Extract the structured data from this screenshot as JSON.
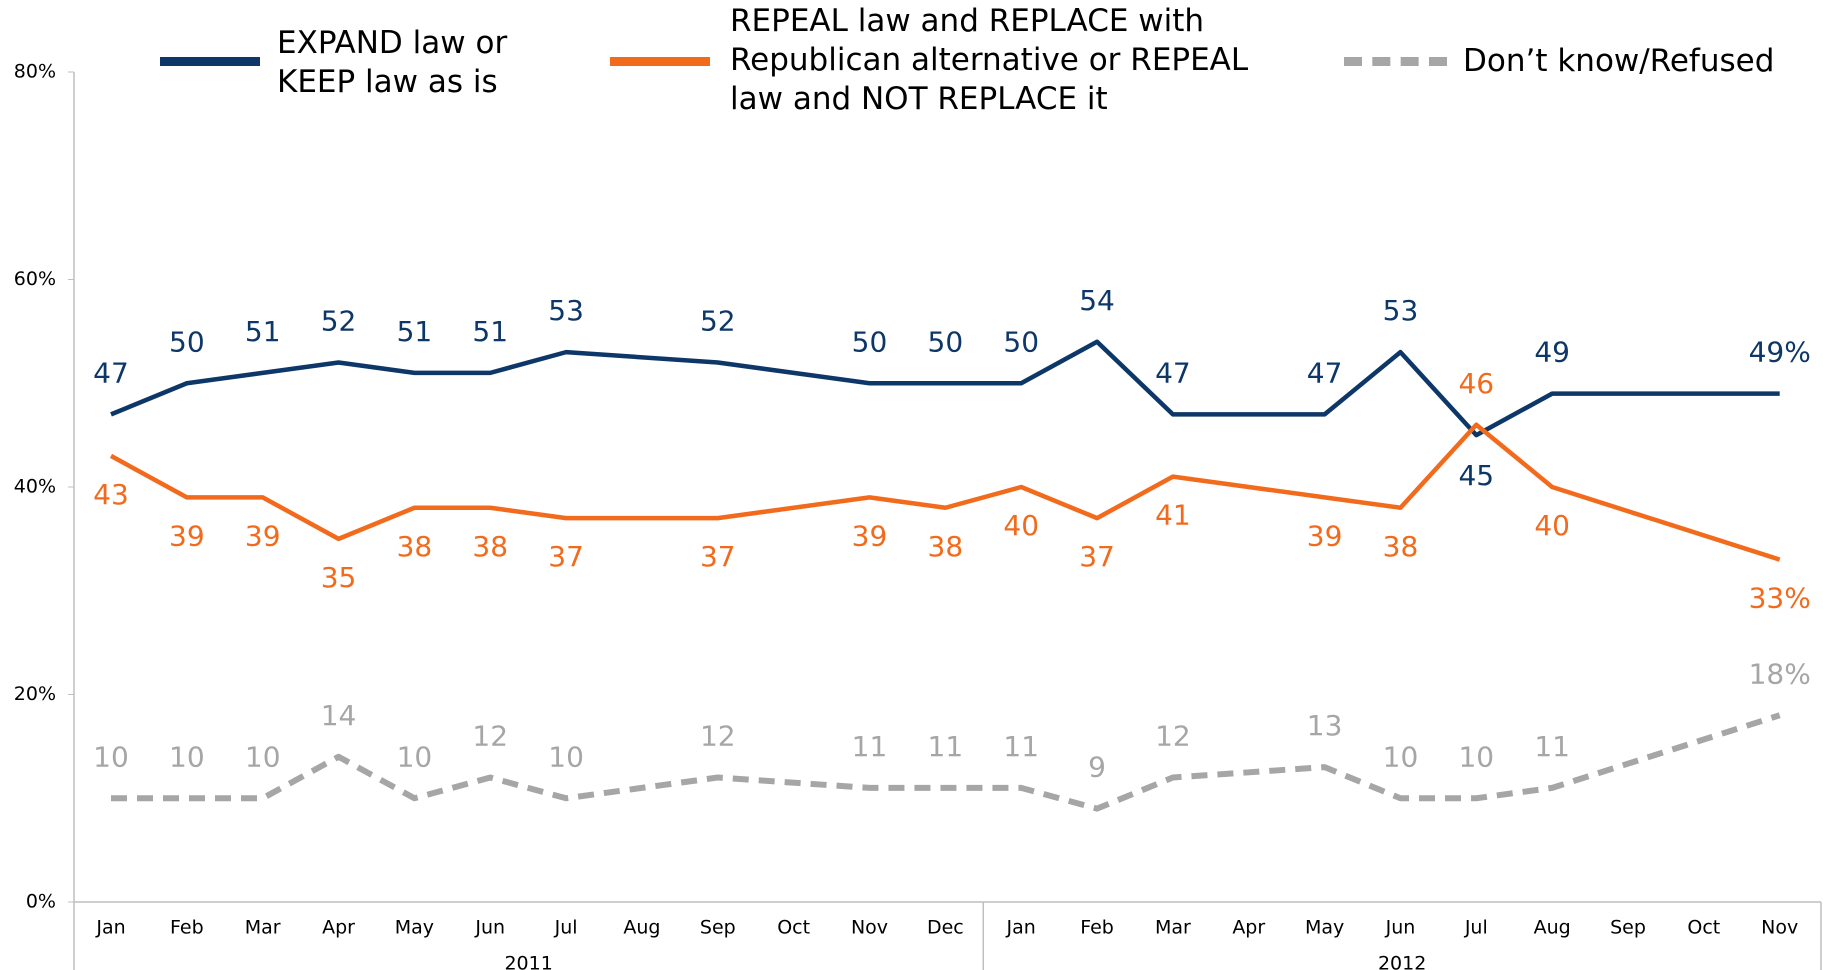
{
  "chart_data": {
    "type": "line",
    "x": [
      "2011-01",
      "2011-02",
      "2011-03",
      "2011-04",
      "2011-05",
      "2011-06",
      "2011-07",
      "2011-09",
      "2011-11",
      "2011-12",
      "2012-01",
      "2012-02",
      "2012-03",
      "2012-05",
      "2012-06",
      "2012-07",
      "2012-08",
      "2012-11"
    ],
    "xticks": [
      {
        "value": "2011-01",
        "label": "Jan"
      },
      {
        "value": "2011-02",
        "label": "Feb"
      },
      {
        "value": "2011-03",
        "label": "Mar"
      },
      {
        "value": "2011-04",
        "label": "Apr"
      },
      {
        "value": "2011-05",
        "label": "May"
      },
      {
        "value": "2011-06",
        "label": "Jun"
      },
      {
        "value": "2011-07",
        "label": "Jul"
      },
      {
        "value": "2011-08",
        "label": "Aug"
      },
      {
        "value": "2011-09",
        "label": "Sep"
      },
      {
        "value": "2011-10",
        "label": "Oct"
      },
      {
        "value": "2011-11",
        "label": "Nov"
      },
      {
        "value": "2011-12",
        "label": "Dec"
      },
      {
        "value": "2012-01",
        "label": "Jan"
      },
      {
        "value": "2012-02",
        "label": "Feb"
      },
      {
        "value": "2012-03",
        "label": "Mar"
      },
      {
        "value": "2012-04",
        "label": "Apr"
      },
      {
        "value": "2012-05",
        "label": "May"
      },
      {
        "value": "2012-06",
        "label": "Jun"
      },
      {
        "value": "2012-07",
        "label": "Jul"
      },
      {
        "value": "2012-08",
        "label": "Aug"
      },
      {
        "value": "2012-09",
        "label": "Sep"
      },
      {
        "value": "2012-10",
        "label": "Oct"
      },
      {
        "value": "2012-11",
        "label": "Nov"
      }
    ],
    "years": [
      "2011",
      "2012"
    ],
    "ylim": [
      0,
      80
    ],
    "yticks": [
      {
        "value": 0,
        "label": "0%"
      },
      {
        "value": 20,
        "label": "20%"
      },
      {
        "value": 40,
        "label": "40%"
      },
      {
        "value": 60,
        "label": "60%"
      },
      {
        "value": 80,
        "label": "80%"
      }
    ],
    "grid": false,
    "series": [
      {
        "name": "EXPAND law or KEEP law as is",
        "color": "#0d3768",
        "dash": false,
        "values": [
          47,
          50,
          51,
          52,
          51,
          51,
          53,
          52,
          50,
          50,
          50,
          54,
          47,
          47,
          53,
          45,
          49,
          49
        ],
        "value_labels": [
          "47",
          "50",
          "51",
          "52",
          "51",
          "51",
          "53",
          "52",
          "50",
          "50",
          "50",
          "54",
          "47",
          "47",
          "53",
          "45",
          "49",
          "49%"
        ]
      },
      {
        "name": "REPEAL law and REPLACE with Republican alternative or REPEAL law and NOT REPLACE it",
        "color": "#f26b1d",
        "dash": false,
        "values": [
          43,
          39,
          39,
          35,
          38,
          38,
          37,
          37,
          39,
          38,
          40,
          37,
          41,
          39,
          38,
          46,
          40,
          33
        ],
        "value_labels": [
          "43",
          "39",
          "39",
          "35",
          "38",
          "38",
          "37",
          "37",
          "39",
          "38",
          "40",
          "37",
          "41",
          "39",
          "38",
          "46",
          "40",
          "33%"
        ]
      },
      {
        "name": "Don’t know/Refused",
        "color": "#a6a6a6",
        "dash": true,
        "values": [
          10,
          10,
          10,
          14,
          10,
          12,
          10,
          12,
          11,
          11,
          11,
          9,
          12,
          13,
          10,
          10,
          11,
          18
        ],
        "value_labels": [
          "10",
          "10",
          "10",
          "14",
          "10",
          "12",
          "10",
          "12",
          "11",
          "11",
          "11",
          "9",
          "12",
          "13",
          "10",
          "10",
          "11",
          "18%"
        ]
      }
    ]
  }
}
